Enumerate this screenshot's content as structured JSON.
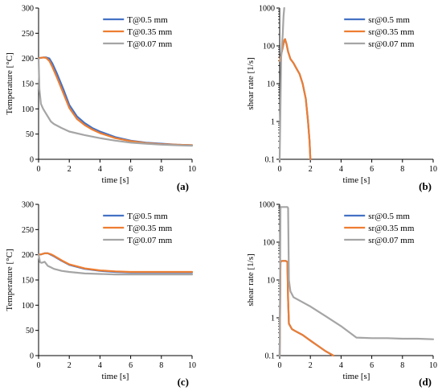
{
  "colors": {
    "series1": "#4472C4",
    "series2": "#ED7D31",
    "series3": "#A5A5A5"
  },
  "chart_data": [
    {
      "id": "a",
      "type": "line",
      "panel_label": "(a)",
      "xlabel": "time [s]",
      "ylabel": "Temperature [°C]",
      "xlim": [
        0,
        10
      ],
      "ylim": [
        0,
        300
      ],
      "yscale": "linear",
      "xticks": [
        0,
        2,
        4,
        6,
        8,
        10
      ],
      "yticks": [
        0,
        50,
        100,
        150,
        200,
        250,
        300
      ],
      "ytick_labels": [
        "0",
        "50",
        "100",
        "150",
        "200",
        "250",
        "300"
      ],
      "legend_position": "top-right",
      "series": [
        {
          "name": "T@0.5 mm",
          "color": "#4472C4",
          "x": [
            0,
            0.1,
            0.3,
            0.5,
            0.7,
            0.9,
            1.2,
            1.6,
            2.0,
            2.5,
            3.0,
            3.5,
            4,
            5,
            6,
            7,
            8,
            9,
            10
          ],
          "y": [
            200,
            201,
            202,
            202,
            200,
            190,
            170,
            140,
            108,
            85,
            72,
            62,
            55,
            44,
            37,
            33,
            31,
            29,
            28
          ]
        },
        {
          "name": "T@0.35 mm",
          "color": "#ED7D31",
          "x": [
            0,
            0.1,
            0.3,
            0.5,
            0.7,
            0.9,
            1.2,
            1.6,
            2.0,
            2.5,
            3.0,
            3.5,
            4,
            5,
            6,
            7,
            8,
            9,
            10
          ],
          "y": [
            200,
            201,
            202,
            201,
            195,
            183,
            162,
            132,
            102,
            80,
            68,
            59,
            52,
            42,
            36,
            32,
            30,
            29,
            28
          ]
        },
        {
          "name": "T@0.07 mm",
          "color": "#A5A5A5",
          "x": [
            0,
            0.05,
            0.15,
            0.3,
            0.5,
            0.8,
            1.0,
            1.5,
            2.0,
            3,
            4,
            5,
            6,
            7,
            8,
            9,
            10
          ],
          "y": [
            200,
            140,
            110,
            100,
            90,
            75,
            70,
            62,
            55,
            48,
            42,
            37,
            33,
            31,
            29,
            28,
            27
          ]
        }
      ]
    },
    {
      "id": "b",
      "type": "line",
      "panel_label": "(b)",
      "xlabel": "time [s]",
      "ylabel": "shear rate [1/s]",
      "xlim": [
        0,
        10
      ],
      "ylim": [
        0.1,
        1000
      ],
      "yscale": "log",
      "xticks": [
        0,
        2,
        4,
        6,
        8,
        10
      ],
      "yticks": [
        0.1,
        1,
        10,
        100,
        1000
      ],
      "ytick_labels": [
        "0.1",
        "1",
        "10",
        "100",
        "1000"
      ],
      "legend_position": "top-right",
      "series": [
        {
          "name": "sr@0.5 mm",
          "color": "#4472C4",
          "x": [
            0.02,
            0.1,
            0.2,
            0.3,
            0.35,
            0.45,
            0.55,
            0.7,
            0.9,
            1.1,
            1.3,
            1.5,
            1.7,
            1.85,
            1.95,
            2.0
          ],
          "y": [
            40,
            60,
            90,
            140,
            150,
            110,
            70,
            45,
            35,
            25,
            18,
            10,
            4,
            1,
            0.3,
            0.1
          ]
        },
        {
          "name": "sr@0.35 mm",
          "color": "#ED7D31",
          "x": [
            0.02,
            0.1,
            0.2,
            0.3,
            0.35,
            0.45,
            0.55,
            0.7,
            0.9,
            1.1,
            1.3,
            1.5,
            1.7,
            1.85,
            1.95,
            2.0
          ],
          "y": [
            40,
            60,
            90,
            140,
            150,
            110,
            70,
            45,
            35,
            25,
            18,
            10,
            4,
            1,
            0.3,
            0.1
          ]
        },
        {
          "name": "sr@0.07 mm",
          "color": "#A5A5A5",
          "x": [
            0.0,
            0.1,
            0.2,
            0.25,
            0.3,
            0.3
          ],
          "y": [
            0.1,
            50,
            200,
            600,
            1000,
            1000
          ]
        }
      ]
    },
    {
      "id": "c",
      "type": "line",
      "panel_label": "(c)",
      "xlabel": "time [s]",
      "ylabel": "Temperature [°C]",
      "xlim": [
        0,
        10
      ],
      "ylim": [
        0,
        300
      ],
      "yscale": "linear",
      "xticks": [
        0,
        2,
        4,
        6,
        8,
        10
      ],
      "yticks": [
        0,
        50,
        100,
        150,
        200,
        250,
        300
      ],
      "ytick_labels": [
        "0",
        "50",
        "100",
        "150",
        "200",
        "250",
        "300"
      ],
      "legend_position": "top-right",
      "series": [
        {
          "name": "T@0.5 mm",
          "color": "#4472C4",
          "x": [
            0,
            0.2,
            0.4,
            0.6,
            0.8,
            1.0,
            1.5,
            2,
            3,
            4,
            5,
            6,
            7,
            8,
            9,
            10
          ],
          "y": [
            200,
            201,
            203,
            203,
            200,
            197,
            188,
            180,
            172,
            168,
            166,
            165,
            165,
            165,
            165,
            165
          ]
        },
        {
          "name": "T@0.35 mm",
          "color": "#ED7D31",
          "x": [
            0,
            0.2,
            0.4,
            0.6,
            0.8,
            1.0,
            1.5,
            2,
            3,
            4,
            5,
            6,
            7,
            8,
            9,
            10
          ],
          "y": [
            200,
            201,
            203,
            203,
            201,
            198,
            189,
            181,
            173,
            169,
            167,
            166,
            166,
            166,
            166,
            166
          ]
        },
        {
          "name": "T@0.07 mm",
          "color": "#A5A5A5",
          "x": [
            0,
            0.1,
            0.2,
            0.4,
            0.6,
            0.8,
            1.0,
            1.5,
            2,
            3,
            4,
            5,
            6,
            7,
            8,
            9,
            10
          ],
          "y": [
            200,
            185,
            184,
            186,
            178,
            175,
            172,
            168,
            166,
            163,
            162,
            161,
            161,
            161,
            161,
            161,
            161
          ]
        }
      ]
    },
    {
      "id": "d",
      "type": "line",
      "panel_label": "(d)",
      "xlabel": "time [s]",
      "ylabel": "shear rate [1/s]",
      "xlim": [
        0,
        10
      ],
      "ylim": [
        0.1,
        1000
      ],
      "yscale": "log",
      "xticks": [
        0,
        2,
        4,
        6,
        8,
        10
      ],
      "yticks": [
        0.1,
        1,
        10,
        100,
        1000
      ],
      "ytick_labels": [
        "0.1",
        "1",
        "10",
        "100",
        "1000"
      ],
      "legend_position": "top-right",
      "series": [
        {
          "name": "sr@0.5 mm",
          "color": "#4472C4",
          "x": [
            0.0,
            0.05,
            0.15,
            0.4,
            0.5,
            0.55,
            0.6,
            0.8,
            1.0,
            1.5,
            2.0,
            2.5,
            3.0,
            3.5
          ],
          "y": [
            0.1,
            30,
            32,
            32,
            30,
            3,
            0.7,
            0.5,
            0.45,
            0.35,
            0.25,
            0.18,
            0.13,
            0.1
          ]
        },
        {
          "name": "sr@0.35 mm",
          "color": "#ED7D31",
          "x": [
            0.0,
            0.05,
            0.15,
            0.4,
            0.5,
            0.55,
            0.6,
            0.8,
            1.0,
            1.5,
            2.0,
            2.5,
            3.0,
            3.5
          ],
          "y": [
            0.1,
            30,
            32,
            32,
            30,
            3,
            0.7,
            0.5,
            0.45,
            0.35,
            0.25,
            0.18,
            0.13,
            0.1
          ]
        },
        {
          "name": "sr@0.07 mm",
          "color": "#A5A5A5",
          "x": [
            0.0,
            0.05,
            0.1,
            0.5,
            0.55,
            0.6,
            0.7,
            0.9,
            1.2,
            2,
            3,
            4,
            5,
            6,
            7,
            8,
            9,
            10
          ],
          "y": [
            0.1,
            800,
            850,
            850,
            800,
            10,
            5,
            3.5,
            3,
            2,
            1.1,
            0.6,
            0.3,
            0.29,
            0.29,
            0.28,
            0.28,
            0.27
          ]
        }
      ]
    }
  ]
}
